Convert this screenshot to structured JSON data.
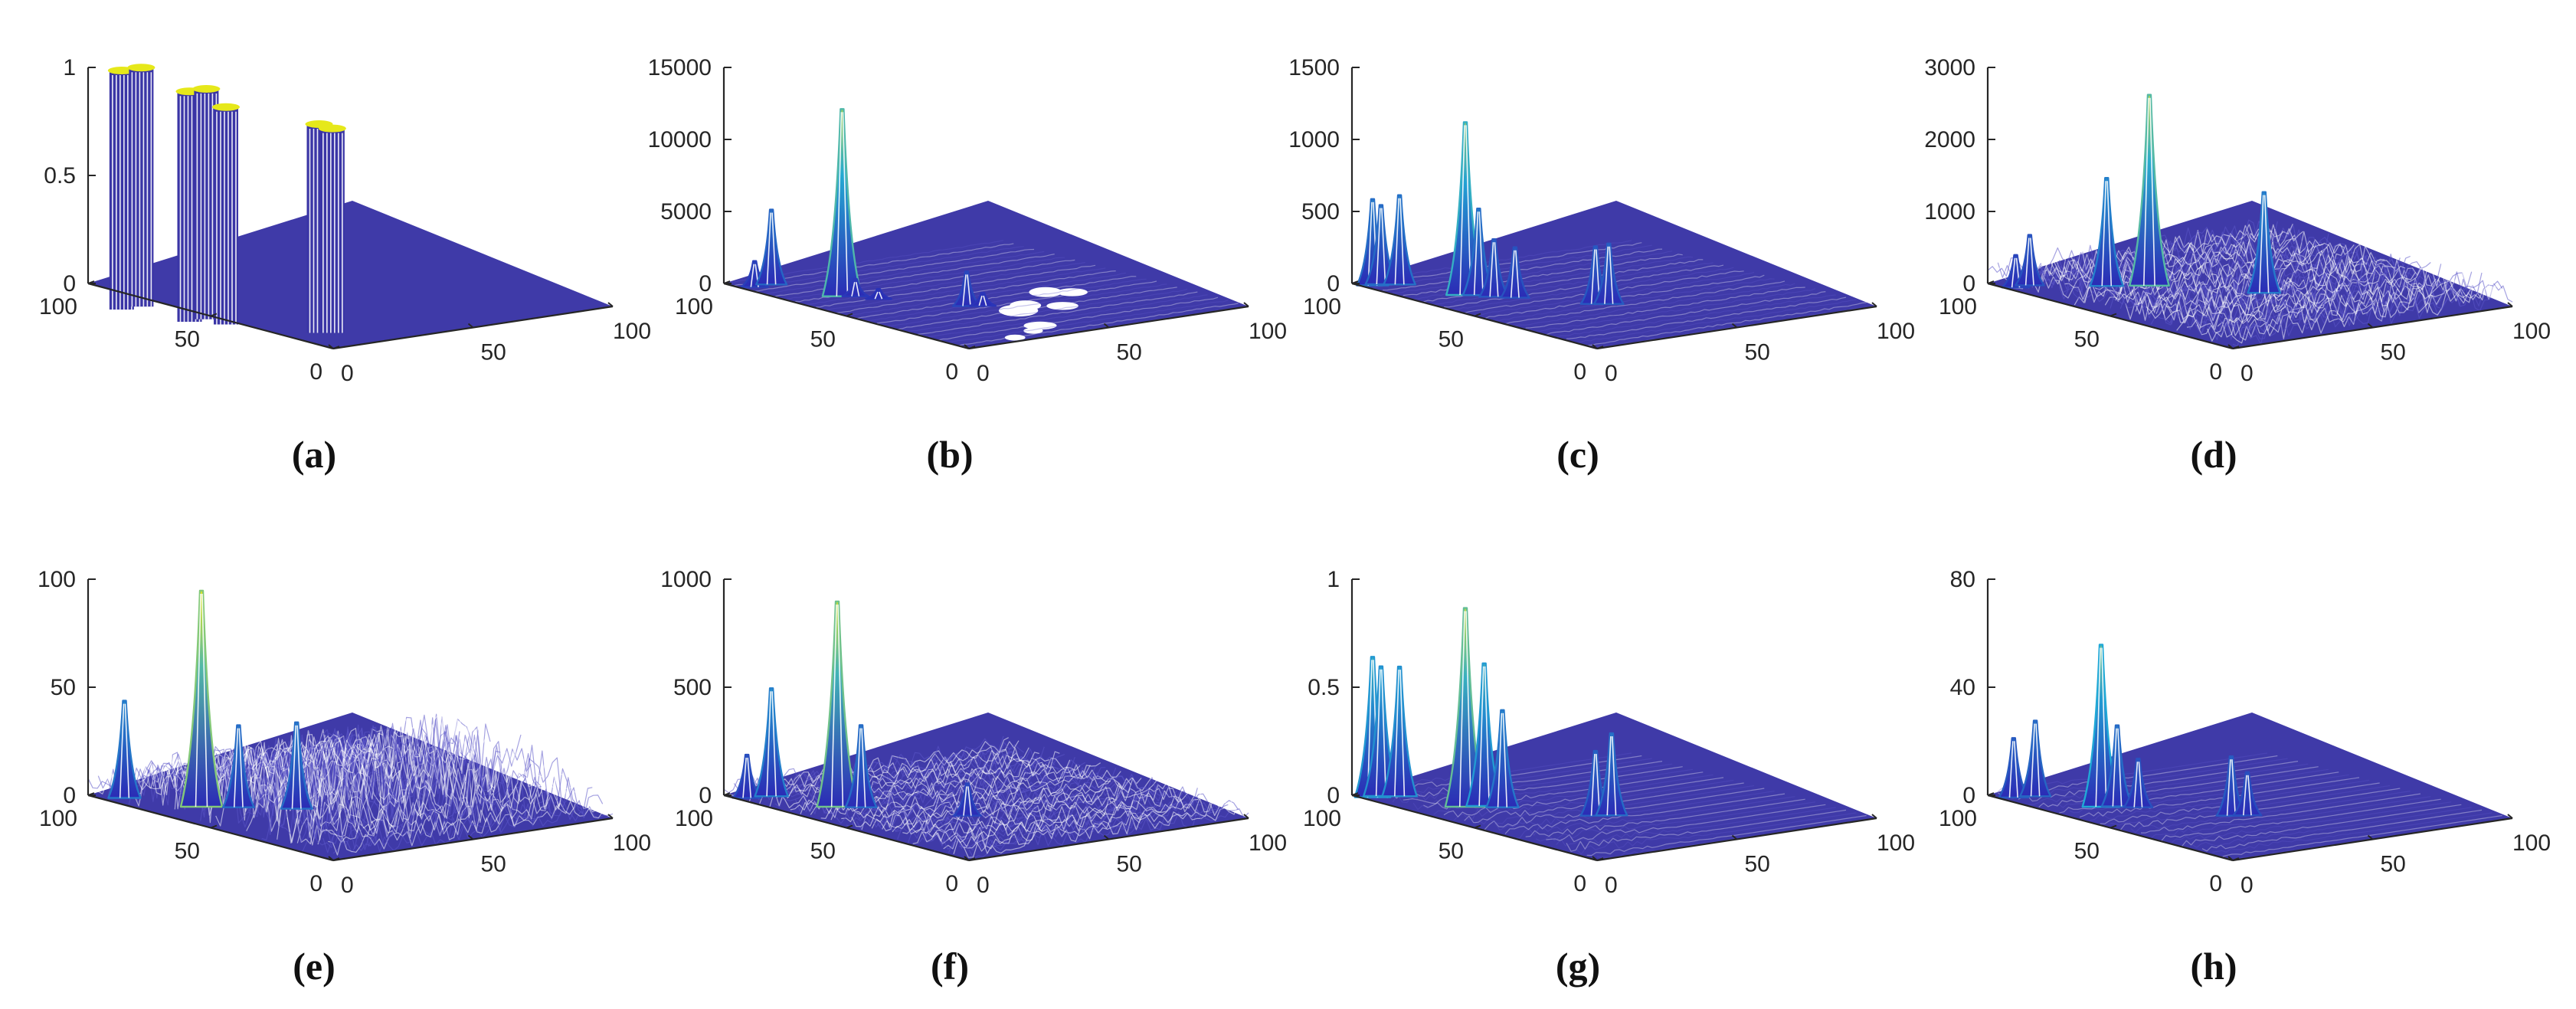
{
  "figure": {
    "panels": [
      {
        "id": "a",
        "label": "(a)",
        "z_ticks": [
          "0",
          "0.5",
          "1"
        ],
        "zmax": 1,
        "y_ticks": [
          "100",
          "50",
          "0"
        ],
        "x_ticks": [
          "0",
          "50",
          "100"
        ]
      },
      {
        "id": "b",
        "label": "(b)",
        "z_ticks": [
          "0",
          "5000",
          "10000",
          "15000"
        ],
        "zmax": 15000,
        "y_ticks": [
          "100",
          "50",
          "0"
        ],
        "x_ticks": [
          "0",
          "50",
          "100"
        ]
      },
      {
        "id": "c",
        "label": "(c)",
        "z_ticks": [
          "0",
          "500",
          "1000",
          "1500"
        ],
        "zmax": 1500,
        "y_ticks": [
          "100",
          "50",
          "0"
        ],
        "x_ticks": [
          "0",
          "50",
          "100"
        ]
      },
      {
        "id": "d",
        "label": "(d)",
        "z_ticks": [
          "0",
          "1000",
          "2000",
          "3000"
        ],
        "zmax": 3000,
        "y_ticks": [
          "100",
          "50",
          "0"
        ],
        "x_ticks": [
          "0",
          "50",
          "100"
        ]
      },
      {
        "id": "e",
        "label": "(e)",
        "z_ticks": [
          "0",
          "50",
          "100"
        ],
        "zmax": 100,
        "y_ticks": [
          "100",
          "50",
          "0"
        ],
        "x_ticks": [
          "0",
          "50",
          "100"
        ]
      },
      {
        "id": "f",
        "label": "(f)",
        "z_ticks": [
          "0",
          "500",
          "1000"
        ],
        "zmax": 1000,
        "y_ticks": [
          "100",
          "50",
          "0"
        ],
        "x_ticks": [
          "0",
          "50",
          "100"
        ]
      },
      {
        "id": "g",
        "label": "(g)",
        "z_ticks": [
          "0",
          "0.5",
          "1"
        ],
        "zmax": 1,
        "y_ticks": [
          "100",
          "50",
          "0"
        ],
        "x_ticks": [
          "0",
          "50",
          "100"
        ]
      },
      {
        "id": "h",
        "label": "(h)",
        "z_ticks": [
          "0",
          "40",
          "80"
        ],
        "zmax": 80,
        "y_ticks": [
          "100",
          "50",
          "0"
        ],
        "x_ticks": [
          "0",
          "50",
          "100"
        ]
      }
    ]
  },
  "colors": {
    "surface": "#3f3aa8",
    "peak_low": "#2b2bb5",
    "peak_mid": "#21a9d6",
    "peak_high": "#e6e81a",
    "axis": "#262626"
  },
  "chart_data": [
    {
      "type": "surface",
      "panel": "(a)",
      "x_range": [
        0,
        100
      ],
      "y_range": [
        0,
        100
      ],
      "zlim": [
        0,
        1
      ],
      "peaks": [
        {
          "x": 5,
          "y": 92,
          "z": 1
        },
        {
          "x": 12,
          "y": 92,
          "z": 1
        },
        {
          "x": 10,
          "y": 70,
          "z": 0.96
        },
        {
          "x": 16,
          "y": 70,
          "z": 0.96
        },
        {
          "x": 16,
          "y": 62,
          "z": 0.9
        },
        {
          "x": 30,
          "y": 40,
          "z": 0.86
        },
        {
          "x": 33,
          "y": 38,
          "z": 0.84
        }
      ]
    },
    {
      "type": "surface",
      "panel": "(b)",
      "x_range": [
        0,
        100
      ],
      "y_range": [
        0,
        100
      ],
      "zlim": [
        0,
        15000
      ],
      "peaks": [
        {
          "x": 4,
          "y": 92,
          "z": 1800
        },
        {
          "x": 10,
          "y": 92,
          "z": 5200
        },
        {
          "x": 16,
          "y": 70,
          "z": 13000
        },
        {
          "x": 19,
          "y": 68,
          "z": 1200
        },
        {
          "x": 22,
          "y": 62,
          "z": 700
        },
        {
          "x": 36,
          "y": 42,
          "z": 2400
        },
        {
          "x": 40,
          "y": 40,
          "z": 900
        }
      ]
    },
    {
      "type": "surface",
      "panel": "(c)",
      "x_range": [
        0,
        100
      ],
      "y_range": [
        0,
        100
      ],
      "zlim": [
        0,
        1500
      ],
      "peaks": [
        {
          "x": 3,
          "y": 95,
          "z": 600
        },
        {
          "x": 6,
          "y": 95,
          "z": 550
        },
        {
          "x": 10,
          "y": 92,
          "z": 620
        },
        {
          "x": 16,
          "y": 72,
          "z": 1200
        },
        {
          "x": 19,
          "y": 70,
          "z": 600
        },
        {
          "x": 21,
          "y": 66,
          "z": 400
        },
        {
          "x": 25,
          "y": 62,
          "z": 350
        },
        {
          "x": 38,
          "y": 44,
          "z": 400
        },
        {
          "x": 41,
          "y": 42,
          "z": 420
        }
      ]
    },
    {
      "type": "surface",
      "panel": "(d)",
      "x_range": [
        0,
        100
      ],
      "y_range": [
        0,
        100
      ],
      "zlim": [
        0,
        3000
      ],
      "peaks": [
        {
          "x": 3,
          "y": 92,
          "z": 450
        },
        {
          "x": 8,
          "y": 92,
          "z": 700
        },
        {
          "x": 25,
          "y": 80,
          "z": 1500
        },
        {
          "x": 35,
          "y": 74,
          "z": 2650
        },
        {
          "x": 55,
          "y": 50,
          "z": 1400
        }
      ]
    },
    {
      "type": "surface",
      "panel": "(e)",
      "x_range": [
        0,
        100
      ],
      "y_range": [
        0,
        100
      ],
      "zlim": [
        0,
        100
      ],
      "peaks": [
        {
          "x": 6,
          "y": 92,
          "z": 45
        },
        {
          "x": 16,
          "y": 72,
          "z": 100
        },
        {
          "x": 24,
          "y": 66,
          "z": 38
        },
        {
          "x": 36,
          "y": 56,
          "z": 40
        }
      ]
    },
    {
      "type": "surface",
      "panel": "(f)",
      "x_range": [
        0,
        100
      ],
      "y_range": [
        0,
        100
      ],
      "zlim": [
        0,
        1000
      ],
      "peaks": [
        {
          "x": 3,
          "y": 94,
          "z": 200
        },
        {
          "x": 10,
          "y": 92,
          "z": 500
        },
        {
          "x": 16,
          "y": 72,
          "z": 950
        },
        {
          "x": 21,
          "y": 68,
          "z": 380
        },
        {
          "x": 38,
          "y": 44,
          "z": 150
        }
      ]
    },
    {
      "type": "surface",
      "panel": "(g)",
      "x_range": [
        0,
        100
      ],
      "y_range": [
        0,
        100
      ],
      "zlim": [
        0,
        1
      ],
      "peaks": [
        {
          "x": 3,
          "y": 95,
          "z": 0.65
        },
        {
          "x": 6,
          "y": 95,
          "z": 0.6
        },
        {
          "x": 10,
          "y": 92,
          "z": 0.6
        },
        {
          "x": 16,
          "y": 72,
          "z": 0.92
        },
        {
          "x": 21,
          "y": 70,
          "z": 0.66
        },
        {
          "x": 24,
          "y": 66,
          "z": 0.45
        },
        {
          "x": 38,
          "y": 44,
          "z": 0.3
        },
        {
          "x": 42,
          "y": 42,
          "z": 0.38
        }
      ]
    },
    {
      "type": "surface",
      "panel": "(h)",
      "x_range": [
        0,
        100
      ],
      "y_range": [
        0,
        100
      ],
      "zlim": [
        0,
        80
      ],
      "peaks": [
        {
          "x": 4,
          "y": 94,
          "z": 22
        },
        {
          "x": 10,
          "y": 92,
          "z": 28
        },
        {
          "x": 16,
          "y": 72,
          "z": 60
        },
        {
          "x": 20,
          "y": 70,
          "z": 30
        },
        {
          "x": 24,
          "y": 66,
          "z": 18
        },
        {
          "x": 38,
          "y": 44,
          "z": 22
        },
        {
          "x": 42,
          "y": 42,
          "z": 16
        }
      ]
    }
  ]
}
